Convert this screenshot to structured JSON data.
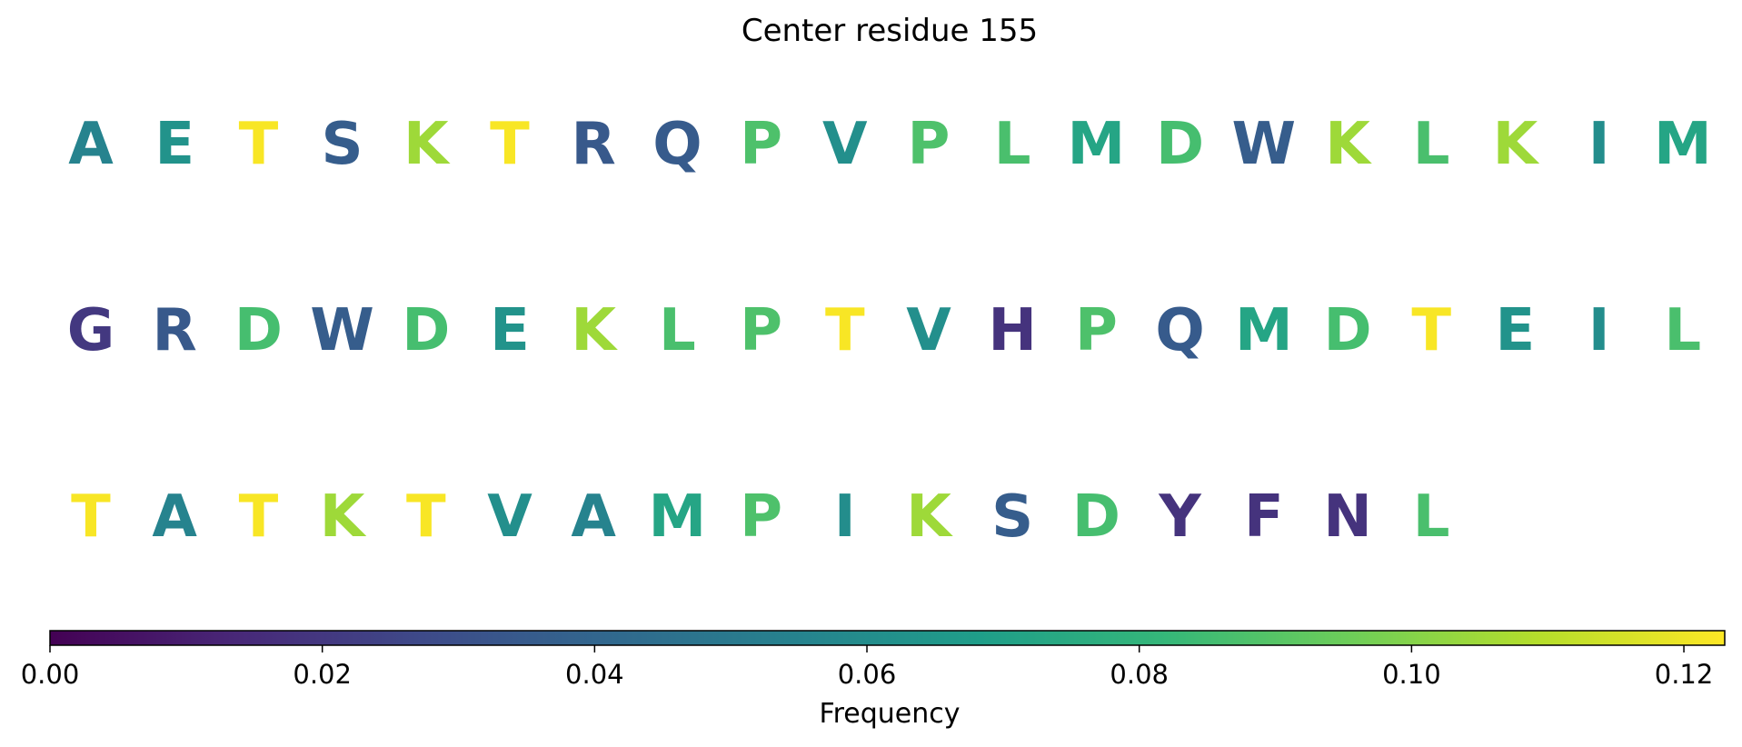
{
  "chart_data": {
    "type": "sequence-frequency-heatmap",
    "title": "Center residue 155",
    "residues_per_row": 20,
    "sequence": [
      {
        "residue": "A",
        "frequency": 0.055
      },
      {
        "residue": "E",
        "frequency": 0.063
      },
      {
        "residue": "T",
        "frequency": 0.122
      },
      {
        "residue": "S",
        "frequency": 0.036
      },
      {
        "residue": "K",
        "frequency": 0.105
      },
      {
        "residue": "T",
        "frequency": 0.122
      },
      {
        "residue": "R",
        "frequency": 0.034
      },
      {
        "residue": "Q",
        "frequency": 0.035
      },
      {
        "residue": "P",
        "frequency": 0.088
      },
      {
        "residue": "V",
        "frequency": 0.061
      },
      {
        "residue": "P",
        "frequency": 0.088
      },
      {
        "residue": "L",
        "frequency": 0.087
      },
      {
        "residue": "M",
        "frequency": 0.072
      },
      {
        "residue": "D",
        "frequency": 0.086
      },
      {
        "residue": "W",
        "frequency": 0.036
      },
      {
        "residue": "K",
        "frequency": 0.105
      },
      {
        "residue": "L",
        "frequency": 0.087
      },
      {
        "residue": "K",
        "frequency": 0.105
      },
      {
        "residue": "I",
        "frequency": 0.06
      },
      {
        "residue": "M",
        "frequency": 0.072
      },
      {
        "residue": "G",
        "frequency": 0.02
      },
      {
        "residue": "R",
        "frequency": 0.034
      },
      {
        "residue": "D",
        "frequency": 0.086
      },
      {
        "residue": "W",
        "frequency": 0.036
      },
      {
        "residue": "D",
        "frequency": 0.086
      },
      {
        "residue": "E",
        "frequency": 0.063
      },
      {
        "residue": "K",
        "frequency": 0.105
      },
      {
        "residue": "L",
        "frequency": 0.087
      },
      {
        "residue": "P",
        "frequency": 0.088
      },
      {
        "residue": "T",
        "frequency": 0.122
      },
      {
        "residue": "V",
        "frequency": 0.061
      },
      {
        "residue": "H",
        "frequency": 0.018
      },
      {
        "residue": "P",
        "frequency": 0.088
      },
      {
        "residue": "Q",
        "frequency": 0.035
      },
      {
        "residue": "M",
        "frequency": 0.072
      },
      {
        "residue": "D",
        "frequency": 0.086
      },
      {
        "residue": "T",
        "frequency": 0.122
      },
      {
        "residue": "E",
        "frequency": 0.063
      },
      {
        "residue": "I",
        "frequency": 0.06
      },
      {
        "residue": "L",
        "frequency": 0.087
      },
      {
        "residue": "T",
        "frequency": 0.122
      },
      {
        "residue": "A",
        "frequency": 0.055
      },
      {
        "residue": "T",
        "frequency": 0.122
      },
      {
        "residue": "K",
        "frequency": 0.105
      },
      {
        "residue": "T",
        "frequency": 0.122
      },
      {
        "residue": "V",
        "frequency": 0.061
      },
      {
        "residue": "A",
        "frequency": 0.055
      },
      {
        "residue": "M",
        "frequency": 0.072
      },
      {
        "residue": "P",
        "frequency": 0.088
      },
      {
        "residue": "I",
        "frequency": 0.06
      },
      {
        "residue": "K",
        "frequency": 0.105
      },
      {
        "residue": "S",
        "frequency": 0.036
      },
      {
        "residue": "D",
        "frequency": 0.086
      },
      {
        "residue": "Y",
        "frequency": 0.018
      },
      {
        "residue": "F",
        "frequency": 0.018
      },
      {
        "residue": "N",
        "frequency": 0.018
      },
      {
        "residue": "L",
        "frequency": 0.087
      }
    ],
    "colorbar": {
      "label": "Frequency",
      "range": [
        0.0,
        0.123
      ],
      "ticks": [
        0.0,
        0.02,
        0.04,
        0.06,
        0.08,
        0.1,
        0.12
      ],
      "tick_labels": [
        "0.00",
        "0.02",
        "0.04",
        "0.06",
        "0.08",
        "0.10",
        "0.12"
      ],
      "colormap": "viridis",
      "stops": [
        "#440154",
        "#482878",
        "#3e4a89",
        "#31688e",
        "#26828e",
        "#1f9e89",
        "#35b779",
        "#6ece58",
        "#b5de2b",
        "#fde725"
      ]
    }
  }
}
